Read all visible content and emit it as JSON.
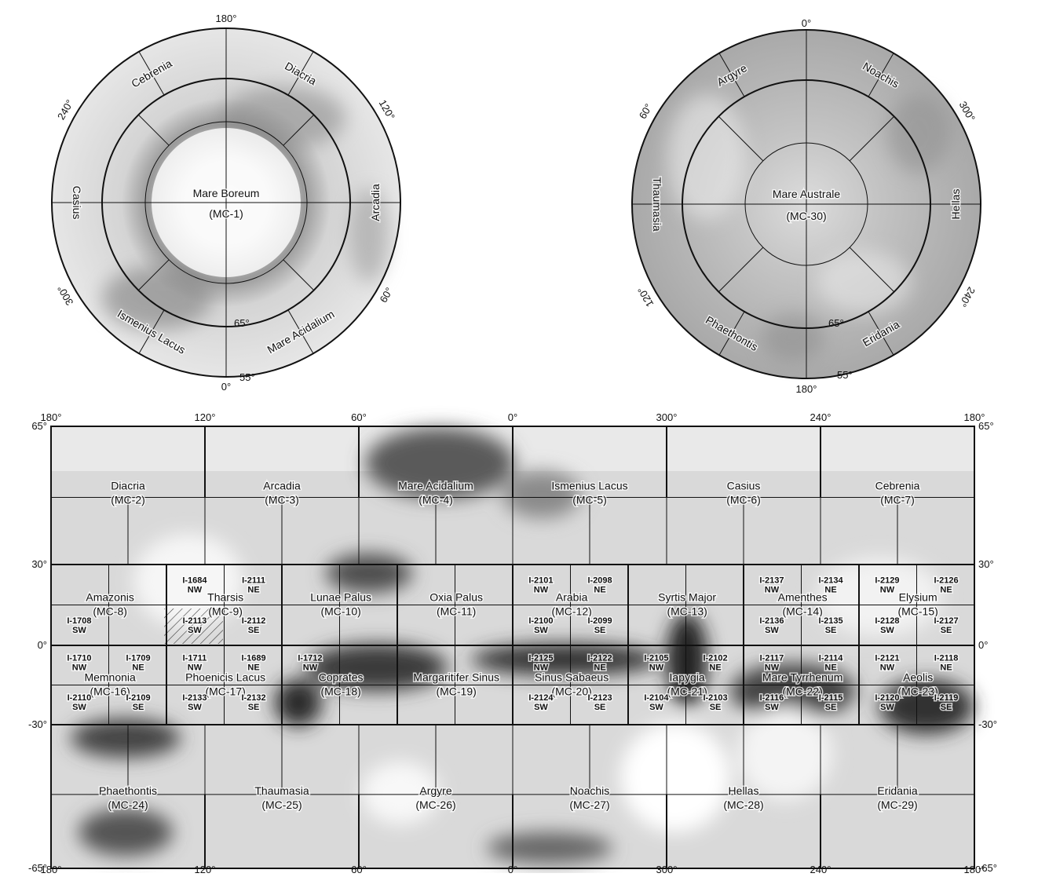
{
  "north_polar": {
    "top_label": "180°",
    "bottom_label": "0°",
    "lon_labels": [
      {
        "text": "120°",
        "angle": 120
      },
      {
        "text": "240°",
        "angle": 240
      },
      {
        "text": "60°",
        "angle": 60
      },
      {
        "text": "300°",
        "angle": 300
      }
    ],
    "lat_labels": [
      "65°",
      "55°"
    ],
    "center": {
      "name": "Mare Boreum",
      "code": "(MC-1)"
    },
    "ring_quads": [
      {
        "name": "Diacria",
        "angle": 150
      },
      {
        "name": "Cebrenia",
        "angle": 210
      },
      {
        "name": "Arcadia",
        "angle": 90
      },
      {
        "name": "Casius",
        "angle": 270
      },
      {
        "name": "Mare Acidalium",
        "angle": 30
      },
      {
        "name": "Ismenius Lacus",
        "angle": 330
      }
    ]
  },
  "south_polar": {
    "top_label": "0°",
    "bottom_label": "180°",
    "lon_labels": [
      {
        "text": "60°",
        "angle": 60
      },
      {
        "text": "300°",
        "angle": 300
      },
      {
        "text": "120°",
        "angle": 120
      },
      {
        "text": "240°",
        "angle": 240
      }
    ],
    "lat_labels": [
      "65°",
      "55°"
    ],
    "center": {
      "name": "Mare Australe",
      "code": "(MC-30)"
    },
    "ring_quads": [
      {
        "name": "Argyre",
        "angle": 30
      },
      {
        "name": "Noachis",
        "angle": 330
      },
      {
        "name": "Thaumasia",
        "angle": 90
      },
      {
        "name": "Hellas",
        "angle": 270
      },
      {
        "name": "Phaethontis",
        "angle": 150
      },
      {
        "name": "Eridania",
        "angle": 210
      }
    ]
  },
  "mercator": {
    "top_lon_labels": [
      "180°",
      "120°",
      "60°",
      "0°",
      "300°",
      "240°",
      "180°"
    ],
    "bottom_lon_labels": [
      "180°",
      "120°",
      "60°",
      "0°",
      "300°",
      "240°",
      "180°"
    ],
    "left_lat_labels": [
      "65°",
      "30°",
      "0°",
      "-30°",
      "-65°"
    ],
    "right_lat_labels": [
      "65°",
      "30°",
      "0°",
      "-30°",
      "-65°"
    ],
    "quadrangles": [
      {
        "name": "Diacria",
        "code": "(MC-2)",
        "lon": 150,
        "lat": 48
      },
      {
        "name": "Arcadia",
        "code": "(MC-3)",
        "lon": 90,
        "lat": 48
      },
      {
        "name": "Mare Acidalium",
        "code": "(MC-4)",
        "lon": 30,
        "lat": 48
      },
      {
        "name": "Ismenius Lacus",
        "code": "(MC-5)",
        "lon": 330,
        "lat": 48
      },
      {
        "name": "Casius",
        "code": "(MC-6)",
        "lon": 270,
        "lat": 48
      },
      {
        "name": "Cebrenia",
        "code": "(MC-7)",
        "lon": 210,
        "lat": 48
      },
      {
        "name": "Amazonis",
        "code": "(MC-8)",
        "lon": 157,
        "lat": 15
      },
      {
        "name": "Tharsis",
        "code": "(MC-9)",
        "lon": 112,
        "lat": 15
      },
      {
        "name": "Lunae Palus",
        "code": "(MC-10)",
        "lon": 67,
        "lat": 15
      },
      {
        "name": "Oxia Palus",
        "code": "(MC-11)",
        "lon": 22,
        "lat": 15
      },
      {
        "name": "Arabia",
        "code": "(MC-12)",
        "lon": 337,
        "lat": 15
      },
      {
        "name": "Syrtis Major",
        "code": "(MC-13)",
        "lon": 292,
        "lat": 15
      },
      {
        "name": "Amenthes",
        "code": "(MC-14)",
        "lon": 247,
        "lat": 15
      },
      {
        "name": "Elysium",
        "code": "(MC-15)",
        "lon": 202,
        "lat": 15
      },
      {
        "name": "Memnonia",
        "code": "(MC-16)",
        "lon": 157,
        "lat": -15
      },
      {
        "name": "Phoenicis Lacus",
        "code": "(MC-17)",
        "lon": 112,
        "lat": -15
      },
      {
        "name": "Coprates",
        "code": "(MC-18)",
        "lon": 67,
        "lat": -15
      },
      {
        "name": "Margaritifer Sinus",
        "code": "(MC-19)",
        "lon": 22,
        "lat": -15
      },
      {
        "name": "Sinus Sabaeus",
        "code": "(MC-20)",
        "lon": 337,
        "lat": -15
      },
      {
        "name": "Iapygia",
        "code": "(MC-21)",
        "lon": 292,
        "lat": -15
      },
      {
        "name": "Mare Tyrrhenum",
        "code": "(MC-22)",
        "lon": 247,
        "lat": -15
      },
      {
        "name": "Aeolis",
        "code": "(MC-23)",
        "lon": 202,
        "lat": -15
      },
      {
        "name": "Phaethontis",
        "code": "(MC-24)",
        "lon": 150,
        "lat": -48
      },
      {
        "name": "Thaumasia",
        "code": "(MC-25)",
        "lon": 90,
        "lat": -48
      },
      {
        "name": "Argyre",
        "code": "(MC-26)",
        "lon": 30,
        "lat": -48
      },
      {
        "name": "Noachis",
        "code": "(MC-27)",
        "lon": 330,
        "lat": -48
      },
      {
        "name": "Hellas",
        "code": "(MC-28)",
        "lon": 270,
        "lat": -48
      },
      {
        "name": "Eridania",
        "code": "(MC-29)",
        "lon": 210,
        "lat": -48
      }
    ],
    "subquads": [
      {
        "id": "I-1684",
        "dir": "NW",
        "lon": 124,
        "lat": 22
      },
      {
        "id": "I-2111",
        "dir": "NE",
        "lon": 101,
        "lat": 22
      },
      {
        "id": "I-1708",
        "dir": "SW",
        "lon": 169,
        "lat": 7
      },
      {
        "id": "I-2113",
        "dir": "SW",
        "lon": 124,
        "lat": 7
      },
      {
        "id": "I-2112",
        "dir": "SE",
        "lon": 101,
        "lat": 7
      },
      {
        "id": "I-2101",
        "dir": "NW",
        "lon": 349,
        "lat": 22
      },
      {
        "id": "I-2098",
        "dir": "NE",
        "lon": 326,
        "lat": 22
      },
      {
        "id": "I-2100",
        "dir": "SW",
        "lon": 349,
        "lat": 7
      },
      {
        "id": "I-2099",
        "dir": "SE",
        "lon": 326,
        "lat": 7
      },
      {
        "id": "I-2137",
        "dir": "NW",
        "lon": 259,
        "lat": 22
      },
      {
        "id": "I-2134",
        "dir": "NE",
        "lon": 236,
        "lat": 22
      },
      {
        "id": "I-2136",
        "dir": "SW",
        "lon": 259,
        "lat": 7
      },
      {
        "id": "I-2135",
        "dir": "SE",
        "lon": 236,
        "lat": 7
      },
      {
        "id": "I-2129",
        "dir": "NW",
        "lon": 214,
        "lat": 22
      },
      {
        "id": "I-2126",
        "dir": "NE",
        "lon": 191,
        "lat": 22
      },
      {
        "id": "I-2128",
        "dir": "SW",
        "lon": 214,
        "lat": 7
      },
      {
        "id": "I-2127",
        "dir": "SE",
        "lon": 191,
        "lat": 7
      },
      {
        "id": "I-1710",
        "dir": "NW",
        "lon": 169,
        "lat": -7
      },
      {
        "id": "I-1709",
        "dir": "NE",
        "lon": 146,
        "lat": -7
      },
      {
        "id": "I-2110",
        "dir": "SW",
        "lon": 169,
        "lat": -22
      },
      {
        "id": "I-2109",
        "dir": "SE",
        "lon": 146,
        "lat": -22
      },
      {
        "id": "I-1711",
        "dir": "NW",
        "lon": 124,
        "lat": -7
      },
      {
        "id": "I-1689",
        "dir": "NE",
        "lon": 101,
        "lat": -7
      },
      {
        "id": "I-2133",
        "dir": "SW",
        "lon": 124,
        "lat": -22
      },
      {
        "id": "I-2132",
        "dir": "SE",
        "lon": 101,
        "lat": -22
      },
      {
        "id": "I-1712",
        "dir": "NW",
        "lon": 79,
        "lat": -7
      },
      {
        "id": "I-2125",
        "dir": "NW",
        "lon": 349,
        "lat": -7
      },
      {
        "id": "I-2122",
        "dir": "NE",
        "lon": 326,
        "lat": -7
      },
      {
        "id": "I-2124",
        "dir": "SW",
        "lon": 349,
        "lat": -22
      },
      {
        "id": "I-2123",
        "dir": "SE",
        "lon": 326,
        "lat": -22
      },
      {
        "id": "I-2105",
        "dir": "NW",
        "lon": 304,
        "lat": -7
      },
      {
        "id": "I-2102",
        "dir": "NE",
        "lon": 281,
        "lat": -7
      },
      {
        "id": "I-2104",
        "dir": "SW",
        "lon": 304,
        "lat": -22
      },
      {
        "id": "I-2103",
        "dir": "SE",
        "lon": 281,
        "lat": -22
      },
      {
        "id": "I-2117",
        "dir": "NW",
        "lon": 259,
        "lat": -7
      },
      {
        "id": "I-2114",
        "dir": "NE",
        "lon": 236,
        "lat": -7
      },
      {
        "id": "I-2116",
        "dir": "SW",
        "lon": 259,
        "lat": -22
      },
      {
        "id": "I-2115",
        "dir": "SE",
        "lon": 236,
        "lat": -22
      },
      {
        "id": "I-2121",
        "dir": "NW",
        "lon": 214,
        "lat": -7
      },
      {
        "id": "I-2118",
        "dir": "NE",
        "lon": 191,
        "lat": -7
      },
      {
        "id": "I-2120",
        "dir": "SW",
        "lon": 214,
        "lat": -22
      },
      {
        "id": "I-2119",
        "dir": "SE",
        "lon": 191,
        "lat": -22
      }
    ]
  }
}
